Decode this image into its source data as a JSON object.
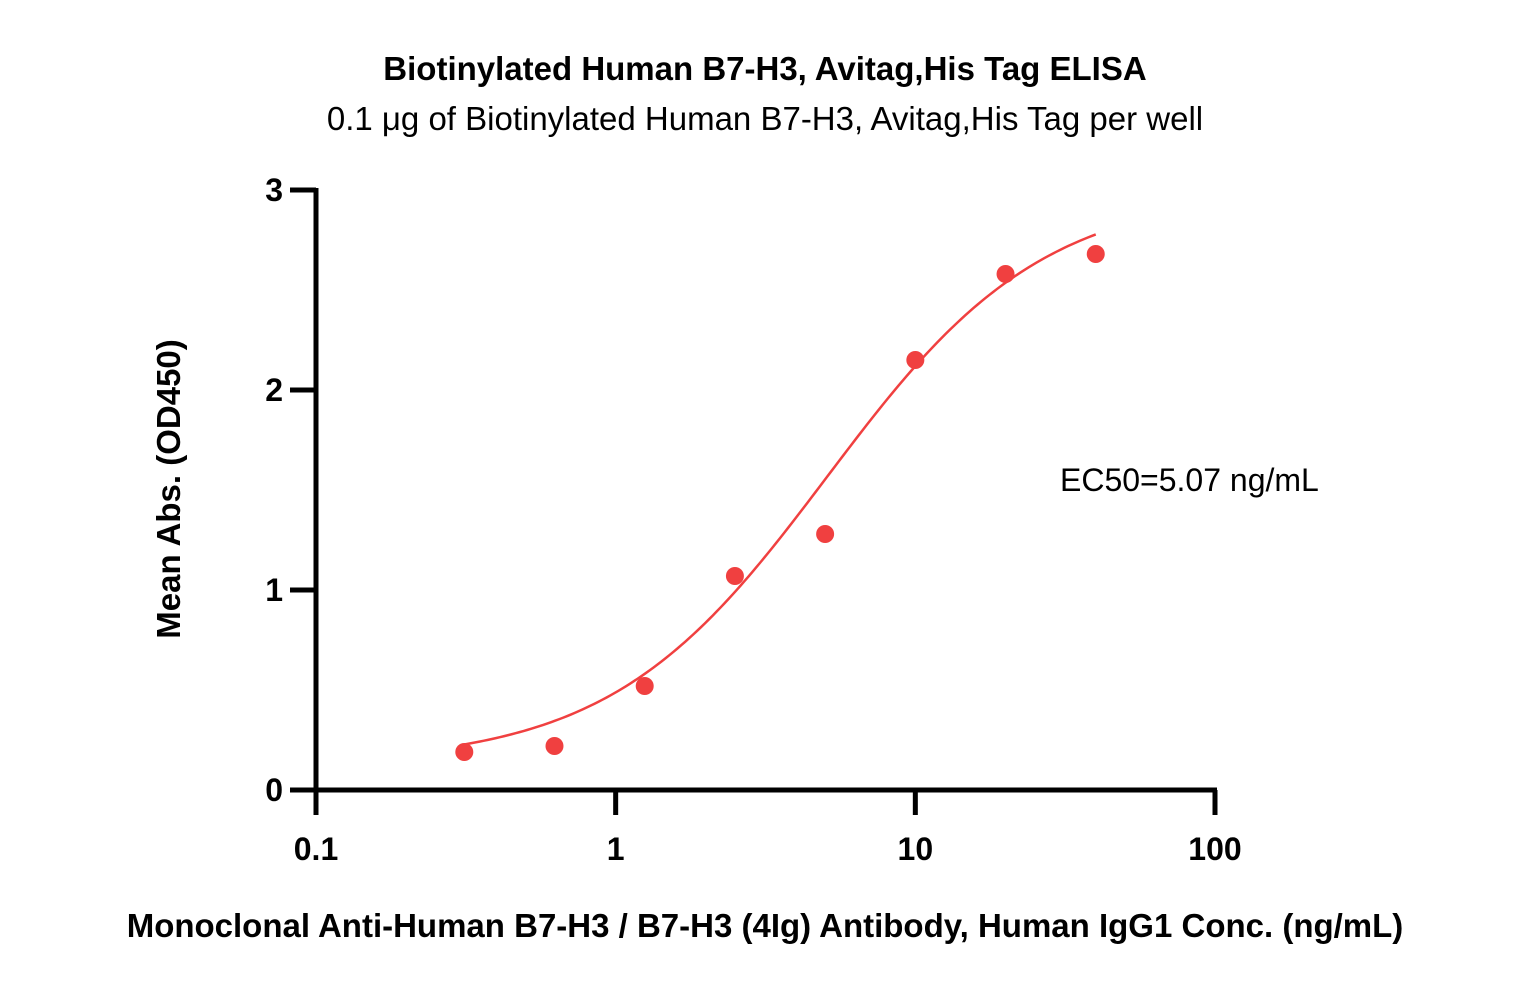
{
  "chart_data": {
    "type": "scatter",
    "title": "Biotinylated Human B7-H3, Avitag,His Tag ELISA",
    "subtitle": "0.1 μg of Biotinylated Human B7-H3, Avitag,His Tag per well",
    "xlabel": "Monoclonal Anti-Human B7-H3 / B7-H3 (4Ig) Antibody, Human IgG1 Conc. (ng/mL)",
    "ylabel": "Mean Abs. (OD450)",
    "xscale": "log",
    "xlim": [
      0.1,
      100
    ],
    "ylim": [
      0,
      3
    ],
    "x_ticks": [
      0.1,
      1,
      10,
      100
    ],
    "x_tick_labels": [
      "0.1",
      "1",
      "10",
      "100"
    ],
    "y_ticks": [
      0,
      1,
      2,
      3
    ],
    "y_tick_labels": [
      "0",
      "1",
      "2",
      "3"
    ],
    "grid": false,
    "annotation": "EC50=5.07 ng/mL",
    "series": [
      {
        "color": "#f04040",
        "x": [
          0.3125,
          0.625,
          1.25,
          2.5,
          5,
          10,
          20,
          40
        ],
        "y": [
          0.19,
          0.22,
          0.52,
          1.07,
          1.28,
          2.15,
          2.58,
          2.68
        ],
        "fit": {
          "model": "4PL",
          "bottom": 0.13,
          "top": 3.0,
          "ec50": 5.07,
          "hill": 1.2
        }
      }
    ]
  }
}
